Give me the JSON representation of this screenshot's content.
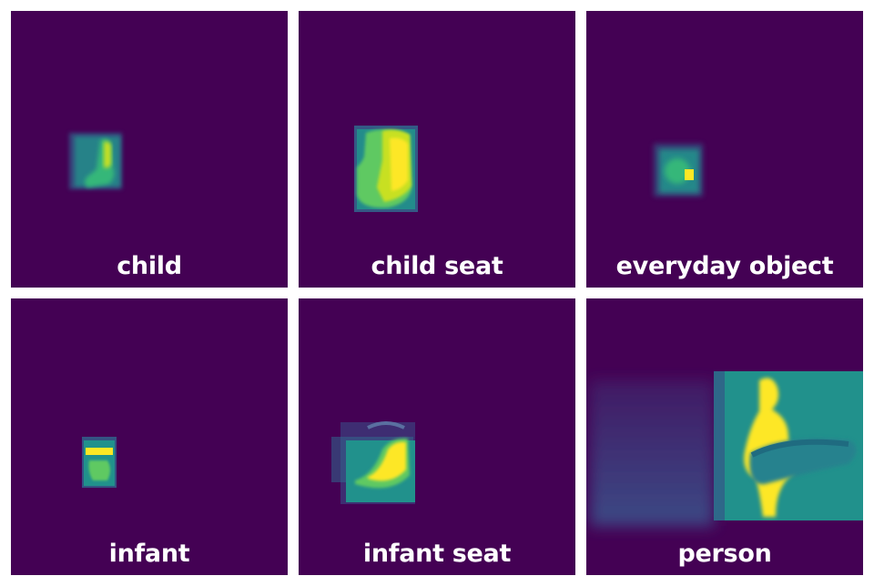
{
  "panels": [
    {
      "id": "child",
      "label": "child"
    },
    {
      "id": "child-seat",
      "label": "child seat"
    },
    {
      "id": "everyday-object",
      "label": "everyday object"
    },
    {
      "id": "infant",
      "label": "infant"
    },
    {
      "id": "infant-seat",
      "label": "infant seat"
    },
    {
      "id": "person",
      "label": "person"
    }
  ],
  "colors": {
    "background": "#440154",
    "low": "#31688e",
    "mid": "#21918c",
    "high": "#35b779",
    "peak": "#fde725"
  }
}
